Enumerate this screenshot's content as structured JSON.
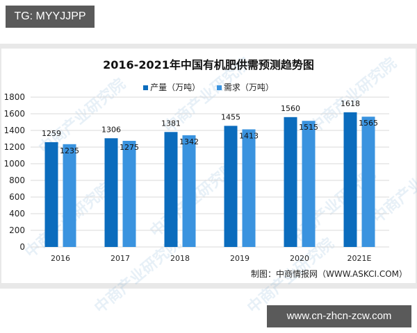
{
  "overlay": {
    "top_tag": "TG: MYYJJPP",
    "bottom_tag": "www.cn-zhcn-zcw.com"
  },
  "colors": {
    "production": "#0b6cbd",
    "demand": "#3a93df",
    "grid": "#d9d9d9",
    "frame": "#e8e8e8"
  },
  "source": "制图：中商情报网（WWW.ASKCI.COM）",
  "watermark": "中商产业研究院",
  "chart_data": {
    "type": "bar",
    "title": "2016-2021年中国有机肥供需预测趋势图",
    "categories": [
      "2016",
      "2017",
      "2018",
      "2019",
      "2020",
      "2021E"
    ],
    "series": [
      {
        "name": "产量（万吨）",
        "values": [
          1259,
          1306,
          1381,
          1455,
          1560,
          1618
        ]
      },
      {
        "name": "需求（万吨）",
        "values": [
          1235,
          1275,
          1342,
          1413,
          1515,
          1565
        ]
      }
    ],
    "xlabel": "",
    "ylabel": "",
    "ylim": [
      0,
      1800
    ],
    "yticks": [
      0,
      200,
      400,
      600,
      800,
      1000,
      1200,
      1400,
      1600,
      1800
    ],
    "grid": true,
    "legend_position": "top"
  }
}
